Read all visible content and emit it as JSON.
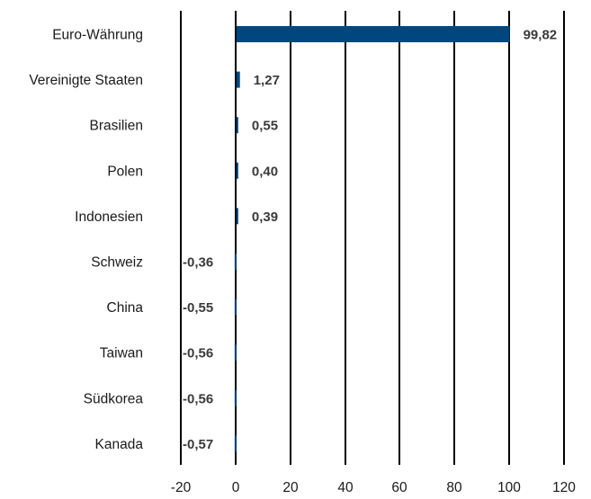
{
  "chart_data": {
    "type": "bar",
    "orientation": "horizontal",
    "title": "",
    "xlabel": "",
    "ylabel": "",
    "categories": [
      "Euro-Währung",
      "Vereinigte Staaten",
      "Brasilien",
      "Polen",
      "Indonesien",
      "Schweiz",
      "China",
      "Taiwan",
      "Südkorea",
      "Kanada"
    ],
    "values": [
      99.82,
      1.27,
      0.55,
      0.4,
      0.39,
      -0.36,
      -0.55,
      -0.56,
      -0.56,
      -0.57
    ],
    "value_labels": [
      "99,82",
      "1,27",
      "0,55",
      "0,40",
      "0,39",
      "-0,36",
      "-0,55",
      "-0,56",
      "-0,56",
      "-0,57"
    ],
    "xlim": [
      -20,
      120
    ],
    "xticks": [
      -20,
      0,
      20,
      40,
      60,
      80,
      100,
      120
    ],
    "xtick_labels": [
      "-20",
      "0",
      "20",
      "40",
      "60",
      "80",
      "100",
      "120"
    ],
    "grid": "vertical",
    "legend": "none",
    "bar_color": "#00467f"
  }
}
